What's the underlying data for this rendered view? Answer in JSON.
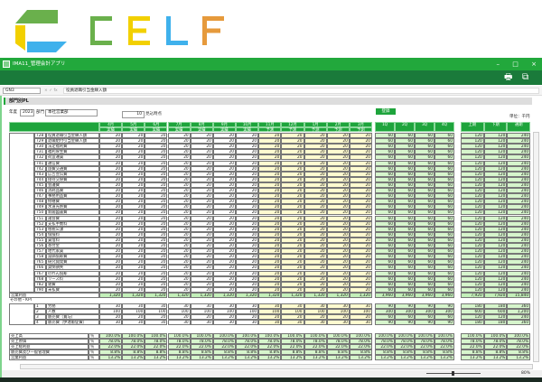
{
  "brand": {
    "logo_text": "CELF",
    "colors": {
      "green": "#6ab04c",
      "yellow": "#f2d000",
      "blue": "#3fb1ec",
      "orange": "#e69a3c"
    }
  },
  "window": {
    "title": "IMA11_管理会計アプリ",
    "minimize": "–",
    "maximize": "□",
    "close": "×"
  },
  "toolbar": {
    "print_icon": "printer-icon",
    "export_icon": "export-icon",
    "print": "🖶",
    "export": "⧉"
  },
  "formula_bar": {
    "name_box": "GN3",
    "cancel": "×",
    "confirm": "✓",
    "fx": "fx",
    "value": "役員退職引当金繰入額"
  },
  "section": {
    "title": "部門別PL"
  },
  "filters": {
    "year_label": "年度",
    "year": "2023",
    "dept_label": "部門",
    "dept": "本社営業部",
    "forecast_month": "10",
    "forecast_label": "見込時点",
    "register_button": "登録",
    "unit": "単位：千円"
  },
  "columns": {
    "months": [
      "4月",
      "5月",
      "6月",
      "7月",
      "8月",
      "9月",
      "10月",
      "11月",
      "12月",
      "1月",
      "2月",
      "3月"
    ],
    "month_types": [
      "実績",
      "実績",
      "実績",
      "実績",
      "実績",
      "実績",
      "実績",
      "予測",
      "予測",
      "予測",
      "予測",
      "予測"
    ],
    "quarters": [
      "1Q",
      "2Q",
      "3Q",
      "4Q"
    ],
    "halves": [
      "上期",
      "下期",
      "通期"
    ]
  },
  "colors": {
    "header": "#1ea43c",
    "forecast": "#fffbd0",
    "summary": "#d6f5cc",
    "total": "#c2efb8"
  },
  "expense_rows": [
    {
      "code": "728",
      "name": "役員退職引当金繰入額",
      "values": [
        "20",
        "20",
        "20",
        "20",
        "20",
        "20",
        "20",
        "20",
        "20",
        "20",
        "20",
        "20",
        "60",
        "60",
        "60",
        "60",
        "120",
        "120",
        "240"
      ]
    },
    {
      "code": "729",
      "name": "退職給付引当金繰入額",
      "values": [
        "20",
        "20",
        "20",
        "20",
        "20",
        "20",
        "20",
        "20",
        "20",
        "20",
        "20",
        "20",
        "60",
        "60",
        "60",
        "60",
        "120",
        "120",
        "240"
      ]
    },
    {
      "code": "730",
      "name": "法定福利費",
      "values": [
        "20",
        "20",
        "20",
        "20",
        "20",
        "20",
        "20",
        "20",
        "20",
        "20",
        "20",
        "20",
        "60",
        "60",
        "60",
        "60",
        "120",
        "120",
        "240"
      ]
    },
    {
      "code": "731",
      "name": "福利厚生費",
      "values": [
        "20",
        "20",
        "20",
        "20",
        "20",
        "20",
        "20",
        "20",
        "20",
        "20",
        "20",
        "20",
        "60",
        "60",
        "60",
        "60",
        "120",
        "120",
        "240"
      ]
    },
    {
      "code": "732",
      "name": "荷造運賃",
      "values": [
        "20",
        "20",
        "20",
        "20",
        "20",
        "20",
        "20",
        "20",
        "20",
        "20",
        "20",
        "20",
        "60",
        "60",
        "60",
        "60",
        "120",
        "120",
        "240"
      ]
    },
    {
      "code": "741",
      "name": "通信費",
      "values": [
        "20",
        "20",
        "20",
        "20",
        "20",
        "20",
        "20",
        "20",
        "20",
        "20",
        "20",
        "20",
        "60",
        "60",
        "60",
        "60",
        "120",
        "120",
        "240"
      ]
    },
    {
      "code": "742",
      "name": "旅費交通費",
      "values": [
        "20",
        "20",
        "20",
        "20",
        "20",
        "20",
        "20",
        "20",
        "20",
        "20",
        "20",
        "20",
        "60",
        "60",
        "60",
        "60",
        "120",
        "120",
        "240"
      ]
    },
    {
      "code": "743",
      "name": "広告宣伝費",
      "values": [
        "20",
        "20",
        "20",
        "20",
        "20",
        "20",
        "20",
        "20",
        "20",
        "20",
        "20",
        "20",
        "60",
        "60",
        "60",
        "60",
        "120",
        "120",
        "240"
      ]
    },
    {
      "code": "744",
      "name": "接待交際費",
      "values": [
        "20",
        "20",
        "20",
        "20",
        "20",
        "20",
        "20",
        "20",
        "20",
        "20",
        "20",
        "20",
        "60",
        "60",
        "60",
        "60",
        "120",
        "120",
        "240"
      ]
    },
    {
      "code": "745",
      "name": "会議費",
      "values": [
        "20",
        "20",
        "20",
        "20",
        "20",
        "20",
        "20",
        "20",
        "20",
        "20",
        "20",
        "20",
        "60",
        "60",
        "60",
        "60",
        "120",
        "120",
        "240"
      ]
    },
    {
      "code": "746",
      "name": "消耗品費",
      "values": [
        "20",
        "20",
        "20",
        "20",
        "20",
        "20",
        "20",
        "20",
        "20",
        "20",
        "20",
        "20",
        "60",
        "60",
        "60",
        "60",
        "120",
        "120",
        "240"
      ]
    },
    {
      "code": "747",
      "name": "事務用品費",
      "values": [
        "20",
        "20",
        "20",
        "20",
        "20",
        "20",
        "20",
        "20",
        "20",
        "20",
        "20",
        "20",
        "60",
        "60",
        "60",
        "60",
        "120",
        "120",
        "240"
      ]
    },
    {
      "code": "748",
      "name": "修繕費",
      "values": [
        "20",
        "20",
        "20",
        "20",
        "20",
        "20",
        "20",
        "20",
        "20",
        "20",
        "20",
        "20",
        "60",
        "60",
        "60",
        "60",
        "120",
        "120",
        "240"
      ]
    },
    {
      "code": "749",
      "name": "水道光熱費",
      "values": [
        "20",
        "20",
        "20",
        "20",
        "20",
        "20",
        "20",
        "20",
        "20",
        "20",
        "20",
        "20",
        "60",
        "60",
        "60",
        "60",
        "120",
        "120",
        "240"
      ]
    },
    {
      "code": "750",
      "name": "新聞図書費",
      "values": [
        "20",
        "20",
        "20",
        "20",
        "20",
        "20",
        "20",
        "20",
        "20",
        "20",
        "20",
        "20",
        "60",
        "60",
        "60",
        "60",
        "120",
        "120",
        "240"
      ]
    },
    {
      "code": "751",
      "name": "諸会費",
      "values": [
        "20",
        "20",
        "20",
        "20",
        "20",
        "20",
        "20",
        "20",
        "20",
        "20",
        "20",
        "20",
        "60",
        "60",
        "60",
        "60",
        "120",
        "120",
        "240"
      ]
    },
    {
      "code": "752",
      "name": "支払手数料",
      "values": [
        "20",
        "20",
        "20",
        "20",
        "20",
        "20",
        "20",
        "20",
        "20",
        "20",
        "20",
        "20",
        "60",
        "60",
        "60",
        "60",
        "120",
        "120",
        "240"
      ]
    },
    {
      "code": "753",
      "name": "租税公課",
      "values": [
        "20",
        "20",
        "20",
        "20",
        "20",
        "20",
        "20",
        "20",
        "20",
        "20",
        "20",
        "20",
        "60",
        "60",
        "60",
        "60",
        "120",
        "120",
        "240"
      ]
    },
    {
      "code": "754",
      "name": "保険料",
      "values": [
        "20",
        "20",
        "20",
        "20",
        "20",
        "20",
        "20",
        "20",
        "20",
        "20",
        "20",
        "20",
        "60",
        "60",
        "60",
        "60",
        "120",
        "120",
        "240"
      ]
    },
    {
      "code": "755",
      "name": "賃借料",
      "values": [
        "20",
        "20",
        "20",
        "20",
        "20",
        "20",
        "20",
        "20",
        "20",
        "20",
        "20",
        "20",
        "60",
        "60",
        "60",
        "60",
        "120",
        "120",
        "240"
      ]
    },
    {
      "code": "756",
      "name": "寄付金",
      "values": [
        "20",
        "20",
        "20",
        "20",
        "20",
        "20",
        "20",
        "20",
        "20",
        "20",
        "20",
        "20",
        "60",
        "60",
        "60",
        "60",
        "120",
        "120",
        "240"
      ]
    },
    {
      "code": "757",
      "name": "地代家賃",
      "values": [
        "20",
        "20",
        "20",
        "20",
        "20",
        "20",
        "20",
        "20",
        "20",
        "20",
        "20",
        "20",
        "60",
        "60",
        "60",
        "60",
        "120",
        "120",
        "240"
      ]
    },
    {
      "code": "758",
      "name": "減価償却費",
      "values": [
        "20",
        "20",
        "20",
        "20",
        "20",
        "20",
        "20",
        "20",
        "20",
        "20",
        "20",
        "20",
        "60",
        "60",
        "60",
        "60",
        "120",
        "120",
        "240"
      ]
    },
    {
      "code": "765",
      "name": "研究開発費",
      "values": [
        "20",
        "20",
        "20",
        "20",
        "20",
        "20",
        "20",
        "20",
        "20",
        "20",
        "20",
        "20",
        "60",
        "60",
        "60",
        "60",
        "120",
        "120",
        "240"
      ]
    },
    {
      "code": "766",
      "name": "貸倒損失",
      "values": [
        "20",
        "20",
        "20",
        "20",
        "20",
        "20",
        "20",
        "20",
        "20",
        "20",
        "20",
        "20",
        "60",
        "60",
        "60",
        "60",
        "120",
        "120",
        "240"
      ]
    },
    {
      "code": "767",
      "name": "のれん償却",
      "values": [
        "20",
        "20",
        "20",
        "20",
        "20",
        "20",
        "20",
        "20",
        "20",
        "20",
        "20",
        "20",
        "60",
        "60",
        "60",
        "60",
        "120",
        "120",
        "240"
      ]
    },
    {
      "code": "768",
      "name": "リース料",
      "values": [
        "20",
        "20",
        "20",
        "20",
        "20",
        "20",
        "20",
        "20",
        "20",
        "20",
        "20",
        "20",
        "60",
        "60",
        "60",
        "60",
        "120",
        "120",
        "240"
      ]
    },
    {
      "code": "782",
      "name": "雑費",
      "values": [
        "20",
        "20",
        "20",
        "20",
        "20",
        "20",
        "20",
        "20",
        "20",
        "20",
        "20",
        "20",
        "60",
        "60",
        "60",
        "60",
        "120",
        "120",
        "240"
      ]
    },
    {
      "code": "790",
      "name": "未払費",
      "values": [
        "20",
        "20",
        "20",
        "20",
        "20",
        "20",
        "20",
        "20",
        "20",
        "20",
        "20",
        "20",
        "60",
        "60",
        "60",
        "60",
        "120",
        "120",
        "240"
      ]
    }
  ],
  "subtotal_row": {
    "name": "営業利益",
    "values": [
      "1,320",
      "1,320",
      "1,320",
      "1,320",
      "1,320",
      "1,320",
      "1,320",
      "1,320",
      "1,320",
      "1,320",
      "1,320",
      "1,320",
      "3,960",
      "3,960",
      "3,960",
      "3,960",
      "7,920",
      "7,920",
      "15,840"
    ]
  },
  "kpi_section_label": "その他・KPI",
  "kpi_rows": [
    {
      "code": "1",
      "name": "労務",
      "values": [
        "30",
        "30",
        "30",
        "30",
        "30",
        "30",
        "30",
        "30",
        "30",
        "30",
        "30",
        "30",
        "90",
        "90",
        "90",
        "90",
        "180",
        "180",
        "360"
      ]
    },
    {
      "code": "2",
      "name": "人数",
      "values": [
        "100",
        "100",
        "100",
        "100",
        "100",
        "100",
        "100",
        "100",
        "100",
        "100",
        "100",
        "100",
        "300",
        "300",
        "300",
        "300",
        "600",
        "600",
        "1,200"
      ]
    },
    {
      "code": "3",
      "name": "販売費（賞与）",
      "values": [
        "20",
        "20",
        "20",
        "20",
        "20",
        "20",
        "20",
        "20",
        "20",
        "20",
        "20",
        "20",
        "60",
        "60",
        "60",
        "60",
        "120",
        "120",
        "240"
      ]
    },
    {
      "code": "4",
      "name": "販売費（伊達販促費）",
      "values": [
        "30",
        "30",
        "30",
        "30",
        "30",
        "30",
        "30",
        "30",
        "30",
        "30",
        "30",
        "30",
        "90",
        "90",
        "90",
        "90",
        "180",
        "180",
        "360"
      ]
    }
  ],
  "ratio_rows": [
    {
      "name": "売上高",
      "unit": "％",
      "value": "100.0%"
    },
    {
      "name": "売上原価",
      "unit": "％",
      "value": "78.0%"
    },
    {
      "name": "売上総利益",
      "unit": "％",
      "value": "22.0%"
    },
    {
      "name": "販売費及び一般管理費",
      "unit": "％",
      "value": "8.8%"
    },
    {
      "name": "営業利益",
      "unit": "％",
      "value": "13.2%"
    }
  ],
  "status": {
    "zoom": "80%"
  }
}
